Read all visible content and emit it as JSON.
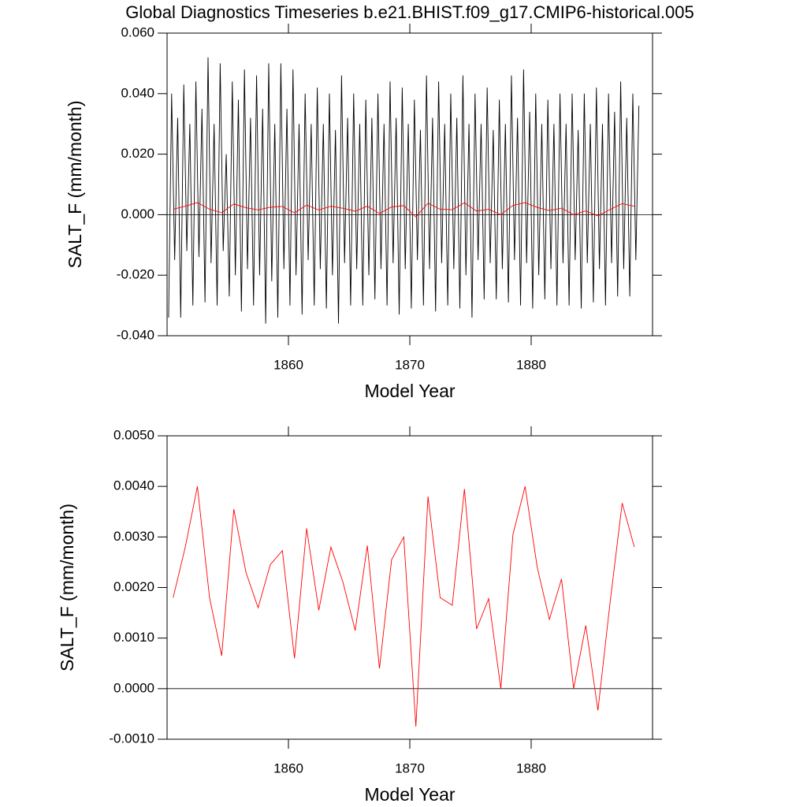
{
  "chart_data": [
    {
      "type": "line",
      "title": "Global Diagnostics Timeseries b.e21.BHIST.f09_g17.CMIP6-historical.005",
      "x_label": "Model Year",
      "y_label": "SALT_F (mm/month)",
      "xlim": [
        1850,
        1890
      ],
      "xticks": [
        1860,
        1870,
        1880
      ],
      "ylim": [
        -0.04,
        0.06
      ],
      "yticks": [
        {
          "value": -0.04,
          "label": "-0.040"
        },
        {
          "value": -0.02,
          "label": "-0.020"
        },
        {
          "value": 0,
          "label": "0.000"
        },
        {
          "value": 0.02,
          "label": "0.020"
        },
        {
          "value": 0.04,
          "label": "0.040"
        },
        {
          "value": 0.06,
          "label": "0.060"
        }
      ],
      "series": [
        {
          "color": "#000000",
          "x": [
            1850.125,
            1850.375,
            1850.625,
            1850.875,
            1851.125,
            1851.375,
            1851.625,
            1851.875,
            1852.125,
            1852.375,
            1852.625,
            1852.875,
            1853.125,
            1853.375,
            1853.625,
            1853.875,
            1854.125,
            1854.375,
            1854.625,
            1854.875,
            1855.125,
            1855.375,
            1855.625,
            1855.875,
            1856.125,
            1856.375,
            1856.625,
            1856.875,
            1857.125,
            1857.375,
            1857.625,
            1857.875,
            1858.125,
            1858.375,
            1858.625,
            1858.875,
            1859.125,
            1859.375,
            1859.625,
            1859.875,
            1860.125,
            1860.375,
            1860.625,
            1860.875,
            1861.125,
            1861.375,
            1861.625,
            1861.875,
            1862.125,
            1862.375,
            1862.625,
            1862.875,
            1863.125,
            1863.375,
            1863.625,
            1863.875,
            1864.125,
            1864.375,
            1864.625,
            1864.875,
            1865.125,
            1865.375,
            1865.625,
            1865.875,
            1866.125,
            1866.375,
            1866.625,
            1866.875,
            1867.125,
            1867.375,
            1867.625,
            1867.875,
            1868.125,
            1868.375,
            1868.625,
            1868.875,
            1869.125,
            1869.375,
            1869.625,
            1869.875,
            1870.125,
            1870.375,
            1870.625,
            1870.875,
            1871.125,
            1871.375,
            1871.625,
            1871.875,
            1872.125,
            1872.375,
            1872.625,
            1872.875,
            1873.125,
            1873.375,
            1873.625,
            1873.875,
            1874.125,
            1874.375,
            1874.625,
            1874.875,
            1875.125,
            1875.375,
            1875.625,
            1875.875,
            1876.125,
            1876.375,
            1876.625,
            1876.875,
            1877.125,
            1877.375,
            1877.625,
            1877.875,
            1878.125,
            1878.375,
            1878.625,
            1878.875,
            1879.125,
            1879.375,
            1879.625,
            1879.875,
            1880.125,
            1880.375,
            1880.625,
            1880.875,
            1881.125,
            1881.375,
            1881.625,
            1881.875,
            1882.125,
            1882.375,
            1882.625,
            1882.875,
            1883.125,
            1883.375,
            1883.625,
            1883.875,
            1884.125,
            1884.375,
            1884.625,
            1884.875,
            1885.125,
            1885.375,
            1885.625,
            1885.875,
            1886.125,
            1886.375,
            1886.625,
            1886.875,
            1887.125,
            1887.375,
            1887.625,
            1887.875,
            1888.125,
            1888.375,
            1888.625,
            1888.875
          ],
          "values": [
            -0.034,
            0.04,
            -0.015,
            0.032,
            -0.034,
            0.043,
            -0.012,
            0.03,
            -0.03,
            0.044,
            -0.014,
            0.035,
            -0.029,
            0.052,
            -0.016,
            0.03,
            -0.03,
            0.05,
            -0.012,
            0.02,
            -0.027,
            0.044,
            -0.02,
            0.038,
            -0.032,
            0.048,
            -0.018,
            0.032,
            -0.03,
            0.046,
            -0.02,
            0.035,
            -0.036,
            0.05,
            -0.022,
            0.03,
            -0.034,
            0.05,
            -0.018,
            0.035,
            -0.03,
            0.048,
            -0.02,
            0.03,
            -0.033,
            0.04,
            -0.015,
            0.03,
            -0.03,
            0.042,
            -0.018,
            0.03,
            -0.031,
            0.04,
            -0.02,
            0.028,
            -0.036,
            0.046,
            -0.016,
            0.032,
            -0.03,
            0.04,
            -0.018,
            0.03,
            -0.03,
            0.038,
            -0.02,
            0.032,
            -0.028,
            0.04,
            -0.018,
            0.03,
            -0.03,
            0.044,
            -0.016,
            0.032,
            -0.033,
            0.042,
            -0.018,
            0.03,
            -0.031,
            0.038,
            -0.015,
            0.028,
            -0.03,
            0.046,
            -0.018,
            0.032,
            -0.032,
            0.044,
            -0.016,
            0.03,
            -0.03,
            0.04,
            -0.018,
            0.032,
            -0.031,
            0.046,
            -0.02,
            0.03,
            -0.034,
            0.04,
            -0.015,
            0.03,
            -0.028,
            0.042,
            -0.016,
            0.028,
            -0.028,
            0.038,
            -0.018,
            0.03,
            -0.029,
            0.046,
            -0.015,
            0.032,
            -0.03,
            0.048,
            -0.016,
            0.034,
            -0.031,
            0.04,
            -0.02,
            0.03,
            -0.028,
            0.038,
            -0.018,
            0.03,
            -0.03,
            0.04,
            -0.016,
            0.03,
            -0.03,
            0.04,
            -0.015,
            0.028,
            -0.031,
            0.04,
            -0.016,
            0.03,
            -0.029,
            0.042,
            -0.018,
            0.03,
            -0.03,
            0.04,
            -0.016,
            0.034,
            -0.027,
            0.044,
            -0.018,
            0.032,
            -0.027,
            0.04,
            -0.015,
            0.036
          ]
        },
        {
          "color": "#ff0000",
          "x": [
            1850.5,
            1851.5,
            1852.5,
            1853.5,
            1854.5,
            1855.5,
            1856.5,
            1857.5,
            1858.5,
            1859.5,
            1860.5,
            1861.5,
            1862.5,
            1863.5,
            1864.5,
            1865.5,
            1866.5,
            1867.5,
            1868.5,
            1869.5,
            1870.5,
            1871.5,
            1872.5,
            1873.5,
            1874.5,
            1875.5,
            1876.5,
            1877.5,
            1878.5,
            1879.5,
            1880.5,
            1881.5,
            1882.5,
            1883.5,
            1884.5,
            1885.5,
            1886.5,
            1887.5,
            1888.5
          ],
          "values": [
            0.0018,
            0.0028,
            0.004,
            0.0018,
            0.00065,
            0.00355,
            0.0023,
            0.0016,
            0.00245,
            0.00273,
            0.0006,
            0.00317,
            0.00155,
            0.0028,
            0.0021,
            0.00115,
            0.00283,
            0.0004,
            0.00255,
            0.003,
            -0.00075,
            0.0038,
            0.0018,
            0.00165,
            0.00395,
            0.00118,
            0.00178,
            0,
            0.00305,
            0.004,
            0.0024,
            0.00137,
            0.00217,
            0,
            0.00125,
            -0.00043,
            0.0017,
            0.00367,
            0.0028
          ]
        }
      ]
    },
    {
      "type": "line",
      "x_label": "Model Year",
      "y_label": "SALT_F (mm/month)",
      "xlim": [
        1850,
        1890
      ],
      "xticks": [
        1860,
        1870,
        1880
      ],
      "ylim": [
        -0.001,
        0.005
      ],
      "yticks": [
        {
          "value": -0.001,
          "label": "-0.0010"
        },
        {
          "value": 0,
          "label": "0.0000"
        },
        {
          "value": 0.001,
          "label": "0.0010"
        },
        {
          "value": 0.002,
          "label": "0.0020"
        },
        {
          "value": 0.003,
          "label": "0.0030"
        },
        {
          "value": 0.004,
          "label": "0.0040"
        },
        {
          "value": 0.005,
          "label": "0.0050"
        }
      ],
      "series": [
        {
          "color": "#ff0000",
          "x": [
            1850.5,
            1851.5,
            1852.5,
            1853.5,
            1854.5,
            1855.5,
            1856.5,
            1857.5,
            1858.5,
            1859.5,
            1860.5,
            1861.5,
            1862.5,
            1863.5,
            1864.5,
            1865.5,
            1866.5,
            1867.5,
            1868.5,
            1869.5,
            1870.5,
            1871.5,
            1872.5,
            1873.5,
            1874.5,
            1875.5,
            1876.5,
            1877.5,
            1878.5,
            1879.5,
            1880.5,
            1881.5,
            1882.5,
            1883.5,
            1884.5,
            1885.5,
            1886.5,
            1887.5,
            1888.5
          ],
          "values": [
            0.0018,
            0.0028,
            0.004,
            0.0018,
            0.00065,
            0.00355,
            0.0023,
            0.0016,
            0.00245,
            0.00273,
            0.0006,
            0.00317,
            0.00155,
            0.0028,
            0.0021,
            0.00115,
            0.00283,
            0.0004,
            0.00255,
            0.003,
            -0.00075,
            0.0038,
            0.0018,
            0.00165,
            0.00395,
            0.00118,
            0.00178,
            0,
            0.00305,
            0.004,
            0.0024,
            0.00137,
            0.00217,
            0,
            0.00125,
            -0.00043,
            0.0017,
            0.00367,
            0.0028
          ]
        }
      ]
    }
  ]
}
